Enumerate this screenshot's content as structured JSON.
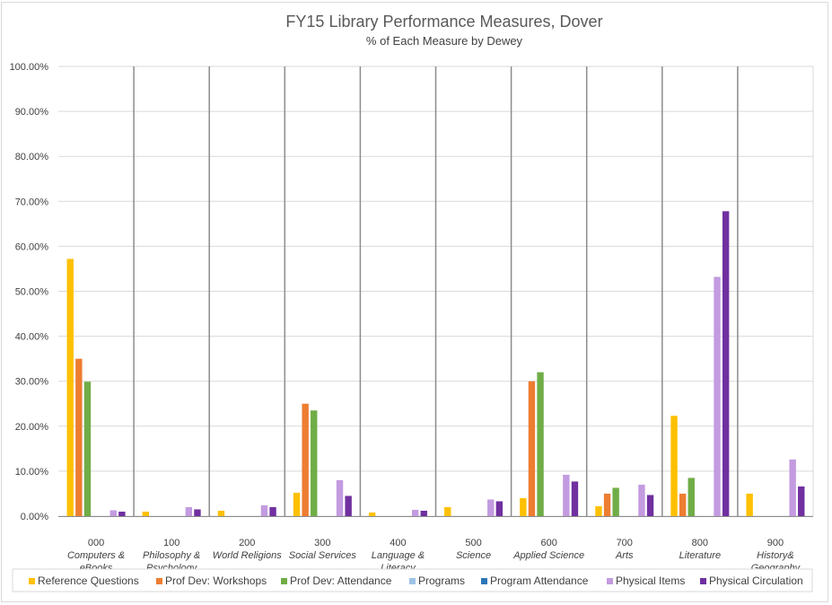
{
  "chart_data": {
    "type": "bar",
    "title": "FY15 Library Performance Measures, Dover",
    "subtitle": "% of Each Measure by Dewey",
    "ylim": [
      0,
      100
    ],
    "yticks": [
      "0.00%",
      "10.00%",
      "20.00%",
      "30.00%",
      "40.00%",
      "50.00%",
      "60.00%",
      "70.00%",
      "80.00%",
      "90.00%",
      "100.00%"
    ],
    "grid": true,
    "legend_position": "bottom",
    "categories": [
      {
        "code": "000",
        "name_lines": [
          "Computers &",
          "eBooks"
        ]
      },
      {
        "code": "100",
        "name_lines": [
          "Philosophy &",
          "Psychology"
        ]
      },
      {
        "code": "200",
        "name_lines": [
          "World Religions"
        ]
      },
      {
        "code": "300",
        "name_lines": [
          "Social Services"
        ]
      },
      {
        "code": "400",
        "name_lines": [
          "Language &",
          "Literacy"
        ]
      },
      {
        "code": "500",
        "name_lines": [
          "Science"
        ]
      },
      {
        "code": "600",
        "name_lines": [
          "Applied Science"
        ]
      },
      {
        "code": "700",
        "name_lines": [
          "Arts"
        ]
      },
      {
        "code": "800",
        "name_lines": [
          "Literature"
        ]
      },
      {
        "code": "900",
        "name_lines": [
          "History&",
          "Geography"
        ]
      }
    ],
    "series": [
      {
        "name": "Reference Questions",
        "color": "#ffc000",
        "values": [
          57.2,
          1.0,
          1.2,
          5.2,
          0.8,
          2.0,
          4.0,
          2.2,
          22.3,
          5.0
        ]
      },
      {
        "name": "Prof Dev: Workshops",
        "color": "#ed7d31",
        "values": [
          35.0,
          0,
          0,
          25.0,
          0,
          0,
          30.0,
          5.0,
          5.0,
          0
        ]
      },
      {
        "name": "Prof Dev: Attendance",
        "color": "#70ad47",
        "values": [
          29.9,
          0,
          0,
          23.5,
          0,
          0,
          32.0,
          6.3,
          8.5,
          0
        ]
      },
      {
        "name": "Programs",
        "color": "#9dc3e6",
        "values": [
          0,
          0,
          0,
          0,
          0,
          0,
          0,
          0,
          0,
          0
        ]
      },
      {
        "name": "Program Attendance",
        "color": "#2e75b6",
        "values": [
          0,
          0,
          0,
          0,
          0,
          0,
          0,
          0,
          0,
          0
        ]
      },
      {
        "name": "Physical Items",
        "color": "#c39be0",
        "values": [
          1.3,
          2.0,
          2.4,
          8.0,
          1.4,
          3.7,
          9.2,
          7.0,
          53.2,
          12.6
        ]
      },
      {
        "name": "Physical Circulation",
        "color": "#7030a0",
        "values": [
          1.0,
          1.5,
          2.0,
          4.5,
          1.2,
          3.3,
          7.7,
          4.7,
          67.8,
          6.6
        ]
      }
    ]
  }
}
